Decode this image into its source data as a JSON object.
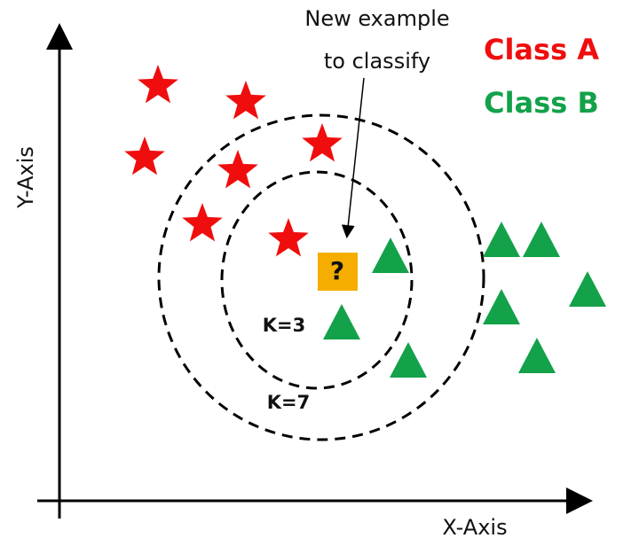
{
  "annotation": {
    "lines": [
      "New example",
      "to classify"
    ]
  },
  "legend": [
    {
      "label": "Class A"
    },
    {
      "label": "Class B"
    }
  ],
  "axes": {
    "x_label": "X-Axis",
    "y_label": "Y-Axis"
  },
  "circles": [
    {
      "label": "K=3"
    },
    {
      "label": "K=7"
    }
  ],
  "query": {
    "label": "?"
  }
}
